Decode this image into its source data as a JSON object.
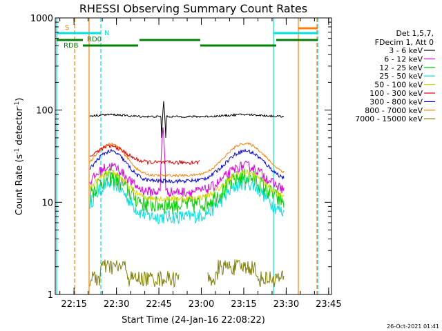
{
  "chart_data": {
    "type": "line",
    "title": "RHESSI Observing Summary Count Rates",
    "xlabel": "Start Time (24-Jan-16 22:08:22)",
    "ylabel": "Count Rate (s",
    "ylabel_sup": "-1",
    "ylabel_mid": " detector",
    "ylabel_close": ")",
    "yscale": "log",
    "ylim": [
      1,
      1000
    ],
    "xlim_minutes": [
      0,
      39
    ],
    "y_ticks": [
      {
        "value": 1,
        "label": "1"
      },
      {
        "value": 10,
        "label": "10"
      },
      {
        "value": 100,
        "label": "100"
      },
      {
        "value": 1000,
        "label": "1000"
      }
    ],
    "x_ticks": [
      {
        "minute": 6.63,
        "label": "22:15"
      },
      {
        "minute": 21.63,
        "label": "22:30"
      },
      {
        "minute": 36.63,
        "label": "22:45"
      },
      {
        "minute": 51.63,
        "label": "23:00"
      },
      {
        "minute": 66.63,
        "label": "23:15"
      },
      {
        "minute": 81.63,
        "label": "23:30"
      },
      {
        "minute": 96.63,
        "label": "23:45"
      }
    ],
    "legend_header": [
      "Det 1,5,7,",
      "FDecim 1, Att 0"
    ],
    "series": [
      {
        "name": "3 - 6 keV",
        "color": "#000000"
      },
      {
        "name": "6 - 12 keV",
        "color": "#e000e0"
      },
      {
        "name": "12 - 25 keV",
        "color": "#00d000"
      },
      {
        "name": "25 - 50 keV",
        "color": "#00e0e0"
      },
      {
        "name": "50 - 100 keV",
        "color": "#d8d800"
      },
      {
        "name": "100 - 300 keV",
        "color": "#e00000"
      },
      {
        "name": "300 - 800 keV",
        "color": "#0000e0"
      },
      {
        "name": "800 - 7000 keV",
        "color": "#ff7f00"
      },
      {
        "name": "7000 - 15000 keV",
        "color": "#808000"
      }
    ],
    "markers": {
      "S": "S",
      "N": "N",
      "RD0": "RD0",
      "RDB": "RDB"
    },
    "timestamp": "26-Oct-2021 01:41"
  }
}
